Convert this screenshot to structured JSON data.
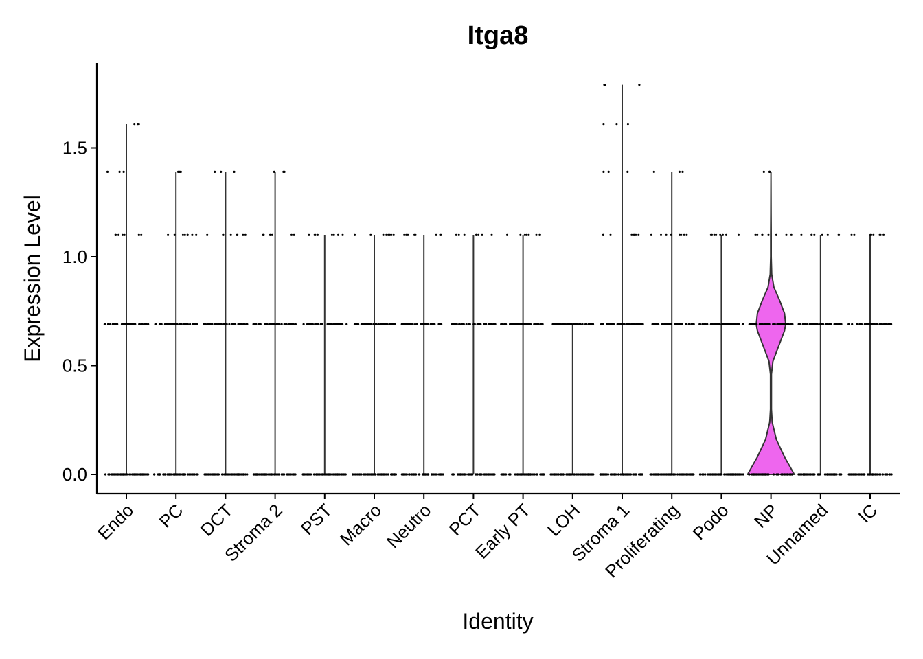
{
  "chart_data": {
    "type": "violin",
    "title": "Itga8",
    "xlabel": "Identity",
    "ylabel": "Expression Level",
    "ylim": [
      -0.09,
      1.88
    ],
    "yticks": [
      "0.0",
      "0.5",
      "1.0",
      "1.5"
    ],
    "ytick_values": [
      0.0,
      0.5,
      1.0,
      1.5
    ],
    "grid": false,
    "legend": "none",
    "categories": [
      "Endo",
      "PC",
      "DCT",
      "Stroma 2",
      "PST",
      "Macro",
      "Neutro",
      "PCT",
      "Early PT",
      "LOH",
      "Stroma 1",
      "Proliferating",
      "Podo",
      "NP",
      "Unnamed",
      "IC"
    ],
    "violins": [
      {
        "category": "Endo",
        "max": 1.61,
        "fill": "none"
      },
      {
        "category": "PC",
        "max": 1.39,
        "fill": "none"
      },
      {
        "category": "DCT",
        "max": 1.39,
        "fill": "none"
      },
      {
        "category": "Stroma 2",
        "max": 1.39,
        "fill": "none"
      },
      {
        "category": "PST",
        "max": 1.1,
        "fill": "none"
      },
      {
        "category": "Macro",
        "max": 1.1,
        "fill": "none"
      },
      {
        "category": "Neutro",
        "max": 1.1,
        "fill": "none"
      },
      {
        "category": "PCT",
        "max": 1.1,
        "fill": "none"
      },
      {
        "category": "Early PT",
        "max": 1.1,
        "fill": "none"
      },
      {
        "category": "LOH",
        "max": 0.69,
        "fill": "none"
      },
      {
        "category": "Stroma 1",
        "max": 1.79,
        "fill": "none"
      },
      {
        "category": "Proliferating",
        "max": 1.39,
        "fill": "none"
      },
      {
        "category": "Podo",
        "max": 1.1,
        "fill": "none"
      },
      {
        "category": "NP",
        "max": 1.39,
        "fill": "#ee66ee",
        "density": [
          [
            0.0,
            0.95
          ],
          [
            0.08,
            0.55
          ],
          [
            0.16,
            0.22
          ],
          [
            0.24,
            0.05
          ],
          [
            0.3,
            0.02
          ],
          [
            0.46,
            0.02
          ],
          [
            0.52,
            0.08
          ],
          [
            0.6,
            0.35
          ],
          [
            0.66,
            0.55
          ],
          [
            0.69,
            0.6
          ],
          [
            0.74,
            0.55
          ],
          [
            0.8,
            0.35
          ],
          [
            0.86,
            0.12
          ],
          [
            0.92,
            0.03
          ],
          [
            1.0,
            0.01
          ],
          [
            1.1,
            0.01
          ],
          [
            1.2,
            0.005
          ],
          [
            1.39,
            0.0
          ]
        ]
      },
      {
        "category": "Unnamed",
        "max": 1.1,
        "fill": "none"
      },
      {
        "category": "IC",
        "max": 1.1,
        "fill": "none"
      }
    ],
    "points": [
      {
        "category": "Endo",
        "levels": [
          0.0,
          0.69,
          1.1,
          1.39,
          1.61
        ]
      },
      {
        "category": "PC",
        "levels": [
          0.0,
          0.69,
          1.1,
          1.39
        ]
      },
      {
        "category": "DCT",
        "levels": [
          0.0,
          0.69,
          1.1,
          1.39
        ]
      },
      {
        "category": "Stroma 2",
        "levels": [
          0.0,
          0.69,
          1.1,
          1.39
        ]
      },
      {
        "category": "PST",
        "levels": [
          0.0,
          0.69,
          1.1
        ]
      },
      {
        "category": "Macro",
        "levels": [
          0.0,
          0.69,
          1.1
        ]
      },
      {
        "category": "Neutro",
        "levels": [
          0.0,
          0.69,
          1.1
        ]
      },
      {
        "category": "PCT",
        "levels": [
          0.0,
          0.69,
          1.1
        ]
      },
      {
        "category": "Early PT",
        "levels": [
          0.0,
          0.69,
          1.1
        ]
      },
      {
        "category": "LOH",
        "levels": [
          0.0,
          0.69
        ]
      },
      {
        "category": "Stroma 1",
        "levels": [
          0.0,
          0.69,
          1.1,
          1.39,
          1.61,
          1.79
        ]
      },
      {
        "category": "Proliferating",
        "levels": [
          0.0,
          0.69,
          1.1,
          1.39
        ]
      },
      {
        "category": "Podo",
        "levels": [
          0.0,
          0.69,
          1.1
        ]
      },
      {
        "category": "NP",
        "levels": [
          0.0,
          0.69,
          1.1,
          1.39
        ]
      },
      {
        "category": "Unnamed",
        "levels": [
          0.0,
          0.69,
          1.1
        ]
      },
      {
        "category": "IC",
        "levels": [
          0.0,
          0.69,
          1.1
        ]
      }
    ],
    "colors": {
      "axis": "#000000",
      "violin_stroke": "#333333",
      "point": "#000000",
      "np_fill": "#ee66ee"
    }
  }
}
